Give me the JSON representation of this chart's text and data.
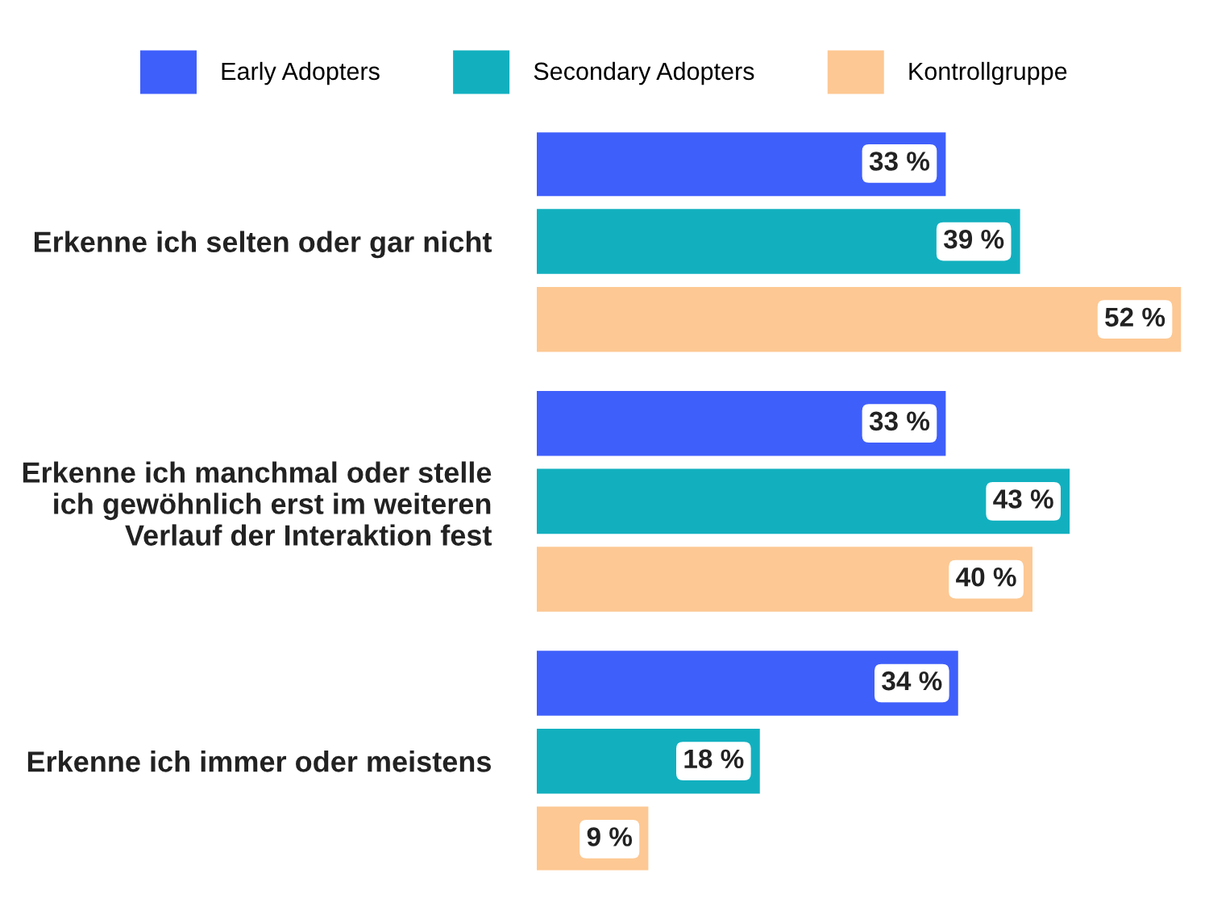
{
  "chart_data": {
    "type": "bar",
    "orientation": "horizontal",
    "categories": [
      "Erkenne ich selten oder gar nicht",
      "Erkenne ich manchmal oder stelle\nich gewöhnlich erst im weiteren\nVerlauf der Interaktion fest",
      "Erkenne ich immer oder meistens"
    ],
    "series": [
      {
        "name": "Early Adopters",
        "color": "#3f5ffb",
        "values": [
          33,
          33,
          34
        ],
        "value_labels": [
          "33 %",
          "33 %",
          "34 %"
        ]
      },
      {
        "name": "Secondary Adopters",
        "color": "#12b0bf",
        "values": [
          39,
          43,
          18
        ],
        "value_labels": [
          "39 %",
          "43 %",
          "18 %"
        ]
      },
      {
        "name": "Kontrollgruppe",
        "color": "#fdc893",
        "values": [
          52,
          40,
          9
        ],
        "value_labels": [
          "52 %",
          "40 %",
          "9 %"
        ]
      }
    ],
    "xlim": [
      0,
      52
    ],
    "tick_labels": "y",
    "grid": false,
    "legend": "top"
  }
}
